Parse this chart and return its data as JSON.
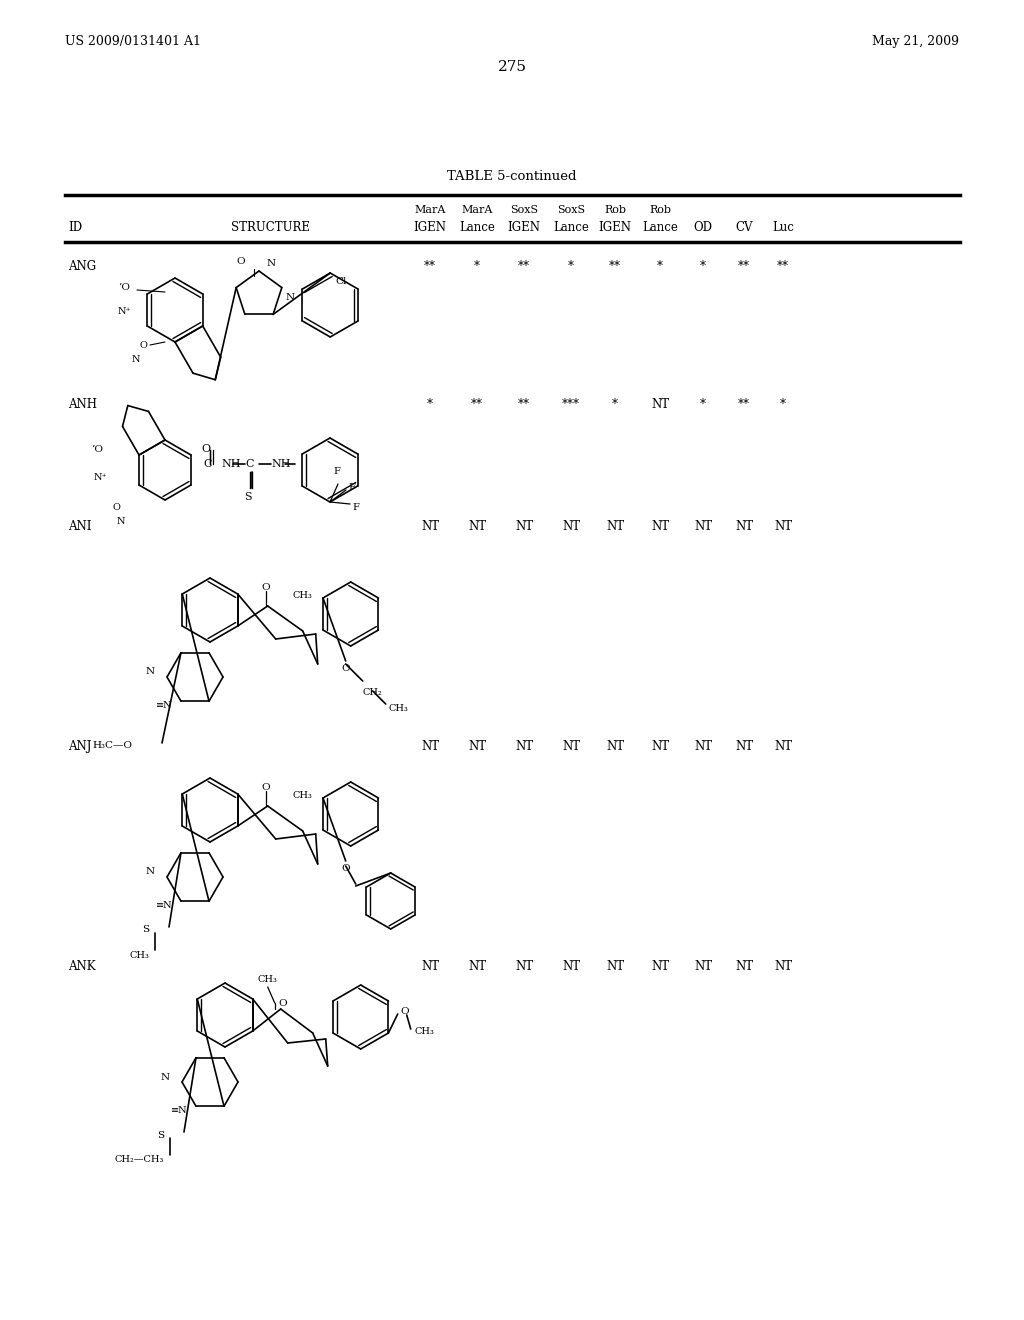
{
  "page_left": "US 2009/0131401 A1",
  "page_right": "May 21, 2009",
  "page_number": "275",
  "table_title": "TABLE 5-continued",
  "header1": [
    "MarA",
    "MarA",
    "SoxS",
    "SoxS",
    "Rob",
    "Rob"
  ],
  "header2": [
    "IGEN",
    "Lance",
    "IGEN",
    "Lance",
    "IGEN",
    "Lance",
    "OD",
    "CV",
    "Luc"
  ],
  "row_ids": [
    "ANG",
    "ANH",
    "ANI",
    "ANJ",
    "ANK"
  ],
  "row_data": [
    [
      "**",
      "*",
      "**",
      "*",
      "**",
      "*",
      "*",
      "**",
      "**"
    ],
    [
      "*",
      "**",
      "**",
      "***",
      "*",
      "NT",
      "*",
      "**",
      "*"
    ],
    [
      "NT",
      "NT",
      "NT",
      "NT",
      "NT",
      "NT",
      "NT",
      "NT",
      "NT"
    ],
    [
      "NT",
      "NT",
      "NT",
      "NT",
      "NT",
      "NT",
      "NT",
      "NT",
      "NT"
    ],
    [
      "NT",
      "NT",
      "NT",
      "NT",
      "NT",
      "NT",
      "NT",
      "NT",
      "NT"
    ]
  ],
  "background_color": "#ffffff"
}
